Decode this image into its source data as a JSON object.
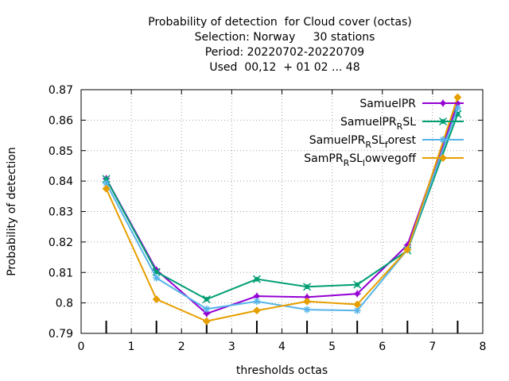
{
  "chart_data": {
    "type": "line",
    "title_lines": [
      "Probability of detection  for Cloud cover (octas)",
      "Selection: Norway     30 stations",
      "Period: 20220702-20220709",
      "Used  00,12  + 01 02 ... 48"
    ],
    "xlabel": "thresholds octas",
    "ylabel": "Probability of detection",
    "xlim": [
      0,
      8
    ],
    "ylim": [
      0.79,
      0.87
    ],
    "xticks": [
      "0",
      "1",
      "2",
      "3",
      "4",
      "5",
      "6",
      "7",
      "8"
    ],
    "yticks": [
      "0.79",
      "0.8",
      "0.81",
      "0.82",
      "0.83",
      "0.84",
      "0.85",
      "0.86",
      "0.87"
    ],
    "grid": true,
    "legend_position": "top-right",
    "x": [
      0.5,
      1.5,
      2.5,
      3.5,
      4.5,
      5.5,
      6.5,
      7.5
    ],
    "series": [
      {
        "name": "SamuelPR",
        "legend": {
          "base": "SamuelPR",
          "sub1": "",
          "mid": "",
          "sub2": "",
          "tail": ""
        },
        "color": "#9400d3",
        "marker": "plus",
        "values": [
          0.8408,
          0.8108,
          0.7965,
          0.8022,
          0.8019,
          0.803,
          0.819,
          0.8655
        ]
      },
      {
        "name": "SamuelPR_R SL",
        "legend": {
          "base": "SamuelPR",
          "sub1": "R",
          "mid": "SL",
          "sub2": "",
          "tail": ""
        },
        "color": "#009e73",
        "marker": "cross",
        "values": [
          0.8407,
          0.8102,
          0.8012,
          0.8078,
          0.8053,
          0.806,
          0.8172,
          0.862
        ]
      },
      {
        "name": "SamuelPR_R SL_f orest",
        "legend": {
          "base": "SamuelPR",
          "sub1": "R",
          "mid": "SL",
          "sub2": "f",
          "tail": "orest"
        },
        "color": "#56b4e9",
        "marker": "star",
        "values": [
          0.8393,
          0.8082,
          0.798,
          0.8005,
          0.7978,
          0.7975,
          0.8175,
          0.864
        ]
      },
      {
        "name": "SamPR_R SL_l owvegoff",
        "legend": {
          "base": "SamPR",
          "sub1": "R",
          "mid": "SL",
          "sub2": "l",
          "tail": "owvegoff"
        },
        "color": "#e69f00",
        "marker": "square",
        "values": [
          0.8375,
          0.8012,
          0.794,
          0.7975,
          0.8005,
          0.7995,
          0.8175,
          0.8675
        ]
      }
    ]
  }
}
